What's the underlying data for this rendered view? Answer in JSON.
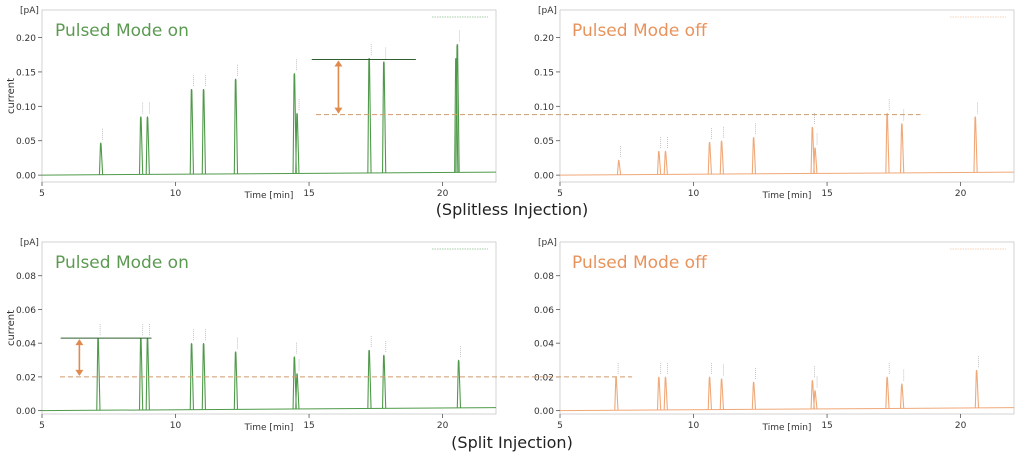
{
  "captions": {
    "top": "(Splitless Injection)",
    "bottom": "(Split Injection)"
  },
  "colors": {
    "on": "#4f9a4a",
    "off": "#f0a878",
    "on_label": "#5c9a52",
    "off_label": "#e9935c",
    "arrow": "#e08a4e",
    "dash": "#d49a6a",
    "axis": "#555555",
    "frame": "#c8c8c8"
  },
  "chart_data": [
    {
      "id": "splitless-on",
      "type": "line",
      "title": "Pulsed Mode on",
      "yunit": "[pA]",
      "ylabel": "current",
      "xlabel": "Time [min]",
      "xlim": [
        5,
        22
      ],
      "ylim": [
        -0.01,
        0.24
      ],
      "xticks": [
        5,
        10,
        15,
        20
      ],
      "yticks": [
        0.0,
        0.05,
        0.1,
        0.15,
        0.2
      ],
      "ytick_labels": [
        "0.00",
        "0.05",
        "0.10",
        "0.15",
        "0.20"
      ],
      "peaks": [
        {
          "x": 7.2,
          "y": 0.047
        },
        {
          "x": 8.7,
          "y": 0.085
        },
        {
          "x": 8.95,
          "y": 0.085
        },
        {
          "x": 10.6,
          "y": 0.125
        },
        {
          "x": 11.05,
          "y": 0.125
        },
        {
          "x": 12.25,
          "y": 0.14
        },
        {
          "x": 14.45,
          "y": 0.148
        },
        {
          "x": 14.55,
          "y": 0.09
        },
        {
          "x": 17.25,
          "y": 0.17
        },
        {
          "x": 17.8,
          "y": 0.165
        },
        {
          "x": 20.5,
          "y": 0.17
        },
        {
          "x": 20.55,
          "y": 0.19
        }
      ],
      "annotation": {
        "x1": 15.1,
        "x2": 19.0,
        "y_top": 0.168,
        "y_bottom": 0.088,
        "arrow_x": 16.1
      }
    },
    {
      "id": "splitless-off",
      "type": "line",
      "title": "Pulsed Mode off",
      "yunit": "[pA]",
      "ylabel": "",
      "xlabel": "Time [min]",
      "xlim": [
        5,
        22
      ],
      "ylim": [
        -0.01,
        0.24
      ],
      "xticks": [
        5,
        10,
        15,
        20
      ],
      "yticks": [
        0.0,
        0.05,
        0.1,
        0.15,
        0.2
      ],
      "ytick_labels": [
        "0.00",
        "0.05",
        "0.10",
        "0.15",
        "0.20"
      ],
      "peaks": [
        {
          "x": 7.2,
          "y": 0.022
        },
        {
          "x": 8.7,
          "y": 0.035
        },
        {
          "x": 8.95,
          "y": 0.035
        },
        {
          "x": 10.6,
          "y": 0.048
        },
        {
          "x": 11.05,
          "y": 0.05
        },
        {
          "x": 12.25,
          "y": 0.055
        },
        {
          "x": 14.45,
          "y": 0.07
        },
        {
          "x": 14.55,
          "y": 0.04
        },
        {
          "x": 17.25,
          "y": 0.09
        },
        {
          "x": 17.8,
          "y": 0.075
        },
        {
          "x": 20.55,
          "y": 0.085
        }
      ],
      "annotation": {
        "dash_y": 0.088,
        "dash_x_end": 18.5
      }
    },
    {
      "id": "split-on",
      "type": "line",
      "title": "Pulsed Mode on",
      "yunit": "[pA]",
      "ylabel": "current",
      "xlabel": "Time [min]",
      "xlim": [
        5,
        22
      ],
      "ylim": [
        -0.002,
        0.1
      ],
      "xticks": [
        5,
        10,
        15,
        20
      ],
      "yticks": [
        0.0,
        0.02,
        0.04,
        0.06,
        0.08
      ],
      "ytick_labels": [
        "0.00",
        "0.02",
        "0.04",
        "0.06",
        "0.08"
      ],
      "peaks": [
        {
          "x": 7.1,
          "y": 0.043
        },
        {
          "x": 8.7,
          "y": 0.043
        },
        {
          "x": 8.95,
          "y": 0.043
        },
        {
          "x": 10.6,
          "y": 0.04
        },
        {
          "x": 11.05,
          "y": 0.04
        },
        {
          "x": 12.25,
          "y": 0.035
        },
        {
          "x": 14.45,
          "y": 0.032
        },
        {
          "x": 14.55,
          "y": 0.022
        },
        {
          "x": 17.25,
          "y": 0.036
        },
        {
          "x": 17.8,
          "y": 0.033
        },
        {
          "x": 20.6,
          "y": 0.03
        }
      ],
      "annotation": {
        "x1": 5.7,
        "x2": 9.1,
        "y_top": 0.043,
        "y_bottom": 0.02,
        "arrow_x": 6.4
      }
    },
    {
      "id": "split-off",
      "type": "line",
      "title": "Pulsed Mode off",
      "yunit": "[pA]",
      "ylabel": "",
      "xlabel": "Time [min]",
      "xlim": [
        5,
        22
      ],
      "ylim": [
        -0.002,
        0.1
      ],
      "xticks": [
        5,
        10,
        15,
        20
      ],
      "yticks": [
        0.0,
        0.02,
        0.04,
        0.06,
        0.08
      ],
      "ytick_labels": [
        "0.00",
        "0.02",
        "0.04",
        "0.06",
        "0.08"
      ],
      "peaks": [
        {
          "x": 7.1,
          "y": 0.02
        },
        {
          "x": 8.7,
          "y": 0.02
        },
        {
          "x": 8.95,
          "y": 0.02
        },
        {
          "x": 10.6,
          "y": 0.02
        },
        {
          "x": 11.05,
          "y": 0.019
        },
        {
          "x": 12.25,
          "y": 0.017
        },
        {
          "x": 14.45,
          "y": 0.018
        },
        {
          "x": 14.55,
          "y": 0.012
        },
        {
          "x": 17.25,
          "y": 0.02
        },
        {
          "x": 17.8,
          "y": 0.016
        },
        {
          "x": 20.6,
          "y": 0.024
        }
      ],
      "annotation": {
        "dash_y": 0.02,
        "dash_x_end": 7.7
      }
    }
  ]
}
